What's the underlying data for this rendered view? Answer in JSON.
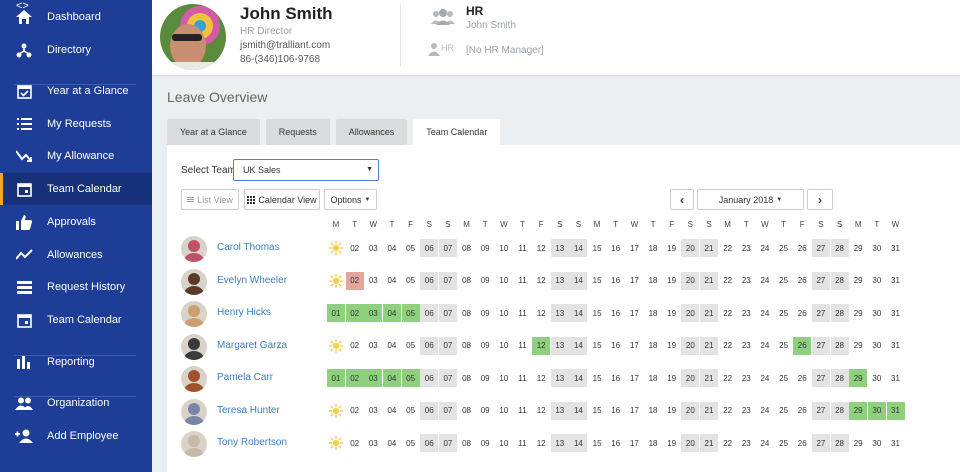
{
  "sidebar": {
    "collapse_icon": "<>",
    "items": [
      {
        "label": "Dashboard",
        "icon": "home-icon"
      },
      {
        "label": "Directory",
        "icon": "org-chart-icon"
      },
      {
        "label": "Year at a Glance",
        "icon": "calendar-check-icon"
      },
      {
        "label": "My Requests",
        "icon": "list-icon"
      },
      {
        "label": "My Allowance",
        "icon": "trend-icon"
      },
      {
        "label": "Team Calendar",
        "icon": "calendar-icon"
      },
      {
        "label": "Approvals",
        "icon": "thumbs-up-icon"
      },
      {
        "label": "Allowances",
        "icon": "line-chart-icon"
      },
      {
        "label": "Request History",
        "icon": "table-icon"
      },
      {
        "label": "Team Calendar",
        "icon": "calendar-icon"
      },
      {
        "label": "Reporting",
        "icon": "bar-chart-icon"
      },
      {
        "label": "Organization",
        "icon": "people-icon"
      },
      {
        "label": "Add Employee",
        "icon": "add-person-icon"
      }
    ],
    "active_index": 5
  },
  "header": {
    "name": "John Smith",
    "role": "HR Director",
    "email": "jsmith@tralliant.com",
    "phone": "86-(346)106-9768",
    "hr_title": "HR",
    "hr_name": "John Smith",
    "hr_manager_label": "HR",
    "hr_manager": "[No HR Manager]"
  },
  "main": {
    "title": "Leave Overview",
    "tabs": [
      "Year at a Glance",
      "Requests",
      "Allowances",
      "Team Calendar"
    ],
    "active_tab": 3,
    "select_team_label": "Select Team",
    "team_value": "UK Sales",
    "list_view_label": "List View",
    "calendar_view_label": "Calendar View",
    "options_label": "Options",
    "month_label": "January 2018",
    "prev_icon": "chevron-left-icon",
    "next_icon": "chevron-right-icon"
  },
  "calendar": {
    "weekdays": [
      "M",
      "T",
      "W",
      "T",
      "F",
      "S",
      "S",
      "M",
      "T",
      "W",
      "T",
      "F",
      "S",
      "S",
      "M",
      "T",
      "W",
      "T",
      "F",
      "S",
      "S",
      "M",
      "T",
      "W",
      "T",
      "F",
      "S",
      "S",
      "M",
      "T",
      "W"
    ],
    "days": [
      "01",
      "02",
      "03",
      "04",
      "05",
      "06",
      "07",
      "08",
      "09",
      "10",
      "11",
      "12",
      "13",
      "14",
      "15",
      "16",
      "17",
      "18",
      "19",
      "20",
      "21",
      "22",
      "23",
      "24",
      "25",
      "26",
      "27",
      "28",
      "29",
      "30",
      "31"
    ],
    "weekend_days": [
      6,
      7,
      13,
      14,
      20,
      21,
      27,
      28
    ],
    "today_day": 1,
    "colors": {
      "leave": "#8ed07e",
      "pending": "#e5a59a",
      "weekend": "#e3e3e3",
      "sidebar": "#1d3d96",
      "accent": "#f5a623",
      "link": "#3a7ec1"
    },
    "employees": [
      {
        "name": "Carol Thomas",
        "leave": [],
        "pending": [],
        "avatar": "#c0506a"
      },
      {
        "name": "Evelyn Wheeler",
        "leave": [],
        "pending": [
          2
        ],
        "avatar": "#5b3a2a"
      },
      {
        "name": "Henry Hicks",
        "leave": [
          1,
          2,
          3,
          4,
          5
        ],
        "pending": [],
        "avatar": "#c9a06e"
      },
      {
        "name": "Margaret Garza",
        "leave": [
          12,
          26
        ],
        "pending": [],
        "avatar": "#3b3b3b"
      },
      {
        "name": "Pamela Carr",
        "leave": [
          1,
          2,
          3,
          4,
          5,
          29
        ],
        "pending": [],
        "avatar": "#a0522d"
      },
      {
        "name": "Teresa Hunter",
        "leave": [
          29,
          30,
          31
        ],
        "pending": [],
        "avatar": "#7a86a8"
      },
      {
        "name": "Tony Robertson",
        "leave": [],
        "pending": [],
        "avatar": "#c8b9a6"
      }
    ]
  }
}
